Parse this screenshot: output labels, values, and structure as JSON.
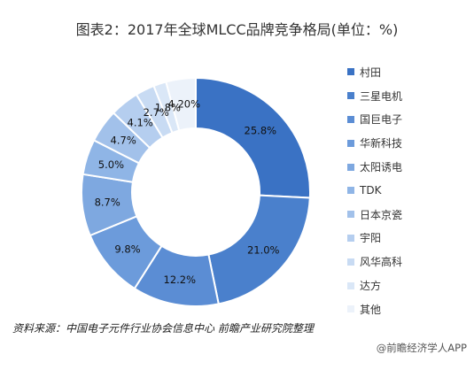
{
  "title": "图表2：2017年全球MLCC品牌竞争格局(单位：%)",
  "source": "资料来源：中国电子元件行业协会信息中心 前瞻产业研究院整理",
  "credit": "@前瞻经济学人APP",
  "chart_data": {
    "type": "pie",
    "donut": true,
    "title": "图表2：2017年全球MLCC品牌竞争格局(单位：%)",
    "categories": [
      "村田",
      "三星电机",
      "国巨电子",
      "华新科技",
      "太阳诱电",
      "TDK",
      "日本京瓷",
      "宇阳",
      "风华高科",
      "达方",
      "其他"
    ],
    "values": [
      25.8,
      21.0,
      12.2,
      9.8,
      8.7,
      5.0,
      4.7,
      4.1,
      2.7,
      1.8,
      4.2
    ],
    "labels": [
      "25.8%",
      "21.0%",
      "12.2%",
      "9.8%",
      "8.7%",
      "5.0%",
      "4.7%",
      "4.1%",
      "2.7%",
      "1.8%",
      "4.20%"
    ],
    "colors": [
      "#3a72c4",
      "#4a80cc",
      "#5b8dd4",
      "#6c9bdb",
      "#7ea8e0",
      "#8fb5e6",
      "#a2c1ea",
      "#b5ceef",
      "#c8dbf3",
      "#dae7f7",
      "#ecf2fa"
    ],
    "legend_position": "right",
    "start_angle_deg": 0,
    "direction": "clockwise"
  }
}
